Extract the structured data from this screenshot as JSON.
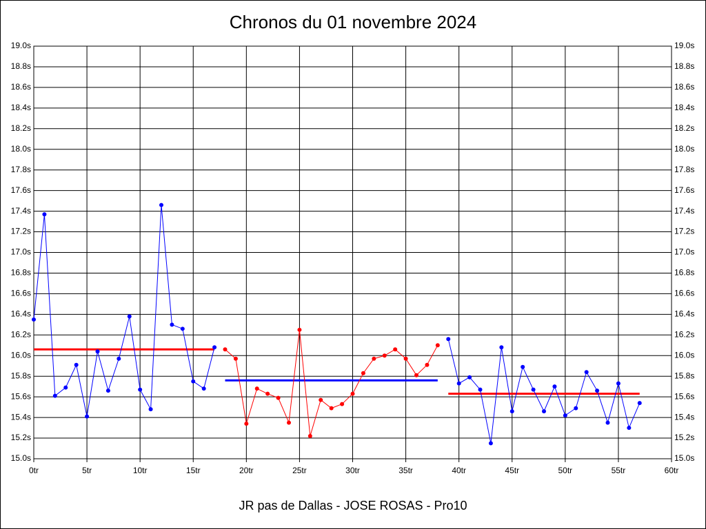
{
  "chart_data": {
    "type": "line",
    "title": "Chronos du 01 novembre 2024",
    "x_label": "JR pas de Dallas - JOSE ROSAS - Pro10",
    "xlim": [
      0,
      60
    ],
    "xticks": [
      {
        "value": 0,
        "label": "0tr"
      },
      {
        "value": 5,
        "label": "5tr"
      },
      {
        "value": 10,
        "label": "10tr"
      },
      {
        "value": 15,
        "label": "15tr"
      },
      {
        "value": 20,
        "label": "20tr"
      },
      {
        "value": 25,
        "label": "25tr"
      },
      {
        "value": 30,
        "label": "30tr"
      },
      {
        "value": 35,
        "label": "35tr"
      },
      {
        "value": 40,
        "label": "40tr"
      },
      {
        "value": 45,
        "label": "45tr"
      },
      {
        "value": 50,
        "label": "50tr"
      },
      {
        "value": 55,
        "label": "55tr"
      },
      {
        "value": 60,
        "label": "60tr"
      }
    ],
    "ylim": [
      15.0,
      19.0
    ],
    "yticks": [
      {
        "value": 15.0,
        "label": "15.0s"
      },
      {
        "value": 15.2,
        "label": "15.2s"
      },
      {
        "value": 15.4,
        "label": "15.4s"
      },
      {
        "value": 15.6,
        "label": "15.6s"
      },
      {
        "value": 15.8,
        "label": "15.8s"
      },
      {
        "value": 16.0,
        "label": "16.0s"
      },
      {
        "value": 16.2,
        "label": "16.2s"
      },
      {
        "value": 16.4,
        "label": "16.4s"
      },
      {
        "value": 16.6,
        "label": "16.6s"
      },
      {
        "value": 16.8,
        "label": "16.8s"
      },
      {
        "value": 17.0,
        "label": "17.0s"
      },
      {
        "value": 17.2,
        "label": "17.2s"
      },
      {
        "value": 17.4,
        "label": "17.4s"
      },
      {
        "value": 17.6,
        "label": "17.6s"
      },
      {
        "value": 17.8,
        "label": "17.8s"
      },
      {
        "value": 18.0,
        "label": "18.0s"
      },
      {
        "value": 18.2,
        "label": "18.2s"
      },
      {
        "value": 18.4,
        "label": "18.4s"
      },
      {
        "value": 18.6,
        "label": "18.6s"
      },
      {
        "value": 18.8,
        "label": "18.8s"
      },
      {
        "value": 19.0,
        "label": "19.0s"
      }
    ],
    "grid": true,
    "series": [
      {
        "color": "#0000ff",
        "x": [
          0,
          1,
          2,
          3,
          4,
          5,
          6,
          7,
          8,
          9,
          10,
          11,
          12,
          13,
          14,
          15,
          16,
          17
        ],
        "values": [
          16.35,
          17.37,
          15.61,
          15.69,
          15.91,
          15.41,
          16.04,
          15.66,
          15.97,
          16.38,
          15.67,
          15.48,
          17.46,
          16.3,
          16.26,
          15.75,
          15.68,
          16.08
        ]
      },
      {
        "color": "#ff0000",
        "x": [
          18,
          19,
          20,
          21,
          22,
          23,
          24,
          25,
          26,
          27,
          28,
          29,
          30,
          31,
          32,
          33,
          34,
          35,
          36,
          37,
          38
        ],
        "values": [
          16.06,
          15.97,
          15.34,
          15.68,
          15.63,
          15.59,
          15.35,
          16.25,
          15.22,
          15.57,
          15.49,
          15.53,
          15.63,
          15.83,
          15.97,
          16.0,
          16.06,
          15.97,
          15.81,
          15.91,
          16.1
        ]
      },
      {
        "color": "#0000ff",
        "x": [
          39,
          40,
          41,
          42,
          43,
          44,
          45,
          46,
          47,
          48,
          49,
          50,
          51,
          52,
          53,
          54,
          55,
          56,
          57
        ],
        "values": [
          16.16,
          15.73,
          15.79,
          15.67,
          15.15,
          16.08,
          15.46,
          15.89,
          15.67,
          15.46,
          15.7,
          15.42,
          15.49,
          15.84,
          15.66,
          15.35,
          15.73,
          15.3,
          15.54
        ]
      }
    ],
    "reference_lines": [
      {
        "xlim": [
          0,
          17
        ],
        "value": 16.06,
        "color": "#ff0000"
      },
      {
        "xlim": [
          18,
          38
        ],
        "value": 15.76,
        "color": "#0000ff"
      },
      {
        "xlim": [
          39,
          57
        ],
        "value": 15.63,
        "color": "#ff0000"
      }
    ]
  }
}
